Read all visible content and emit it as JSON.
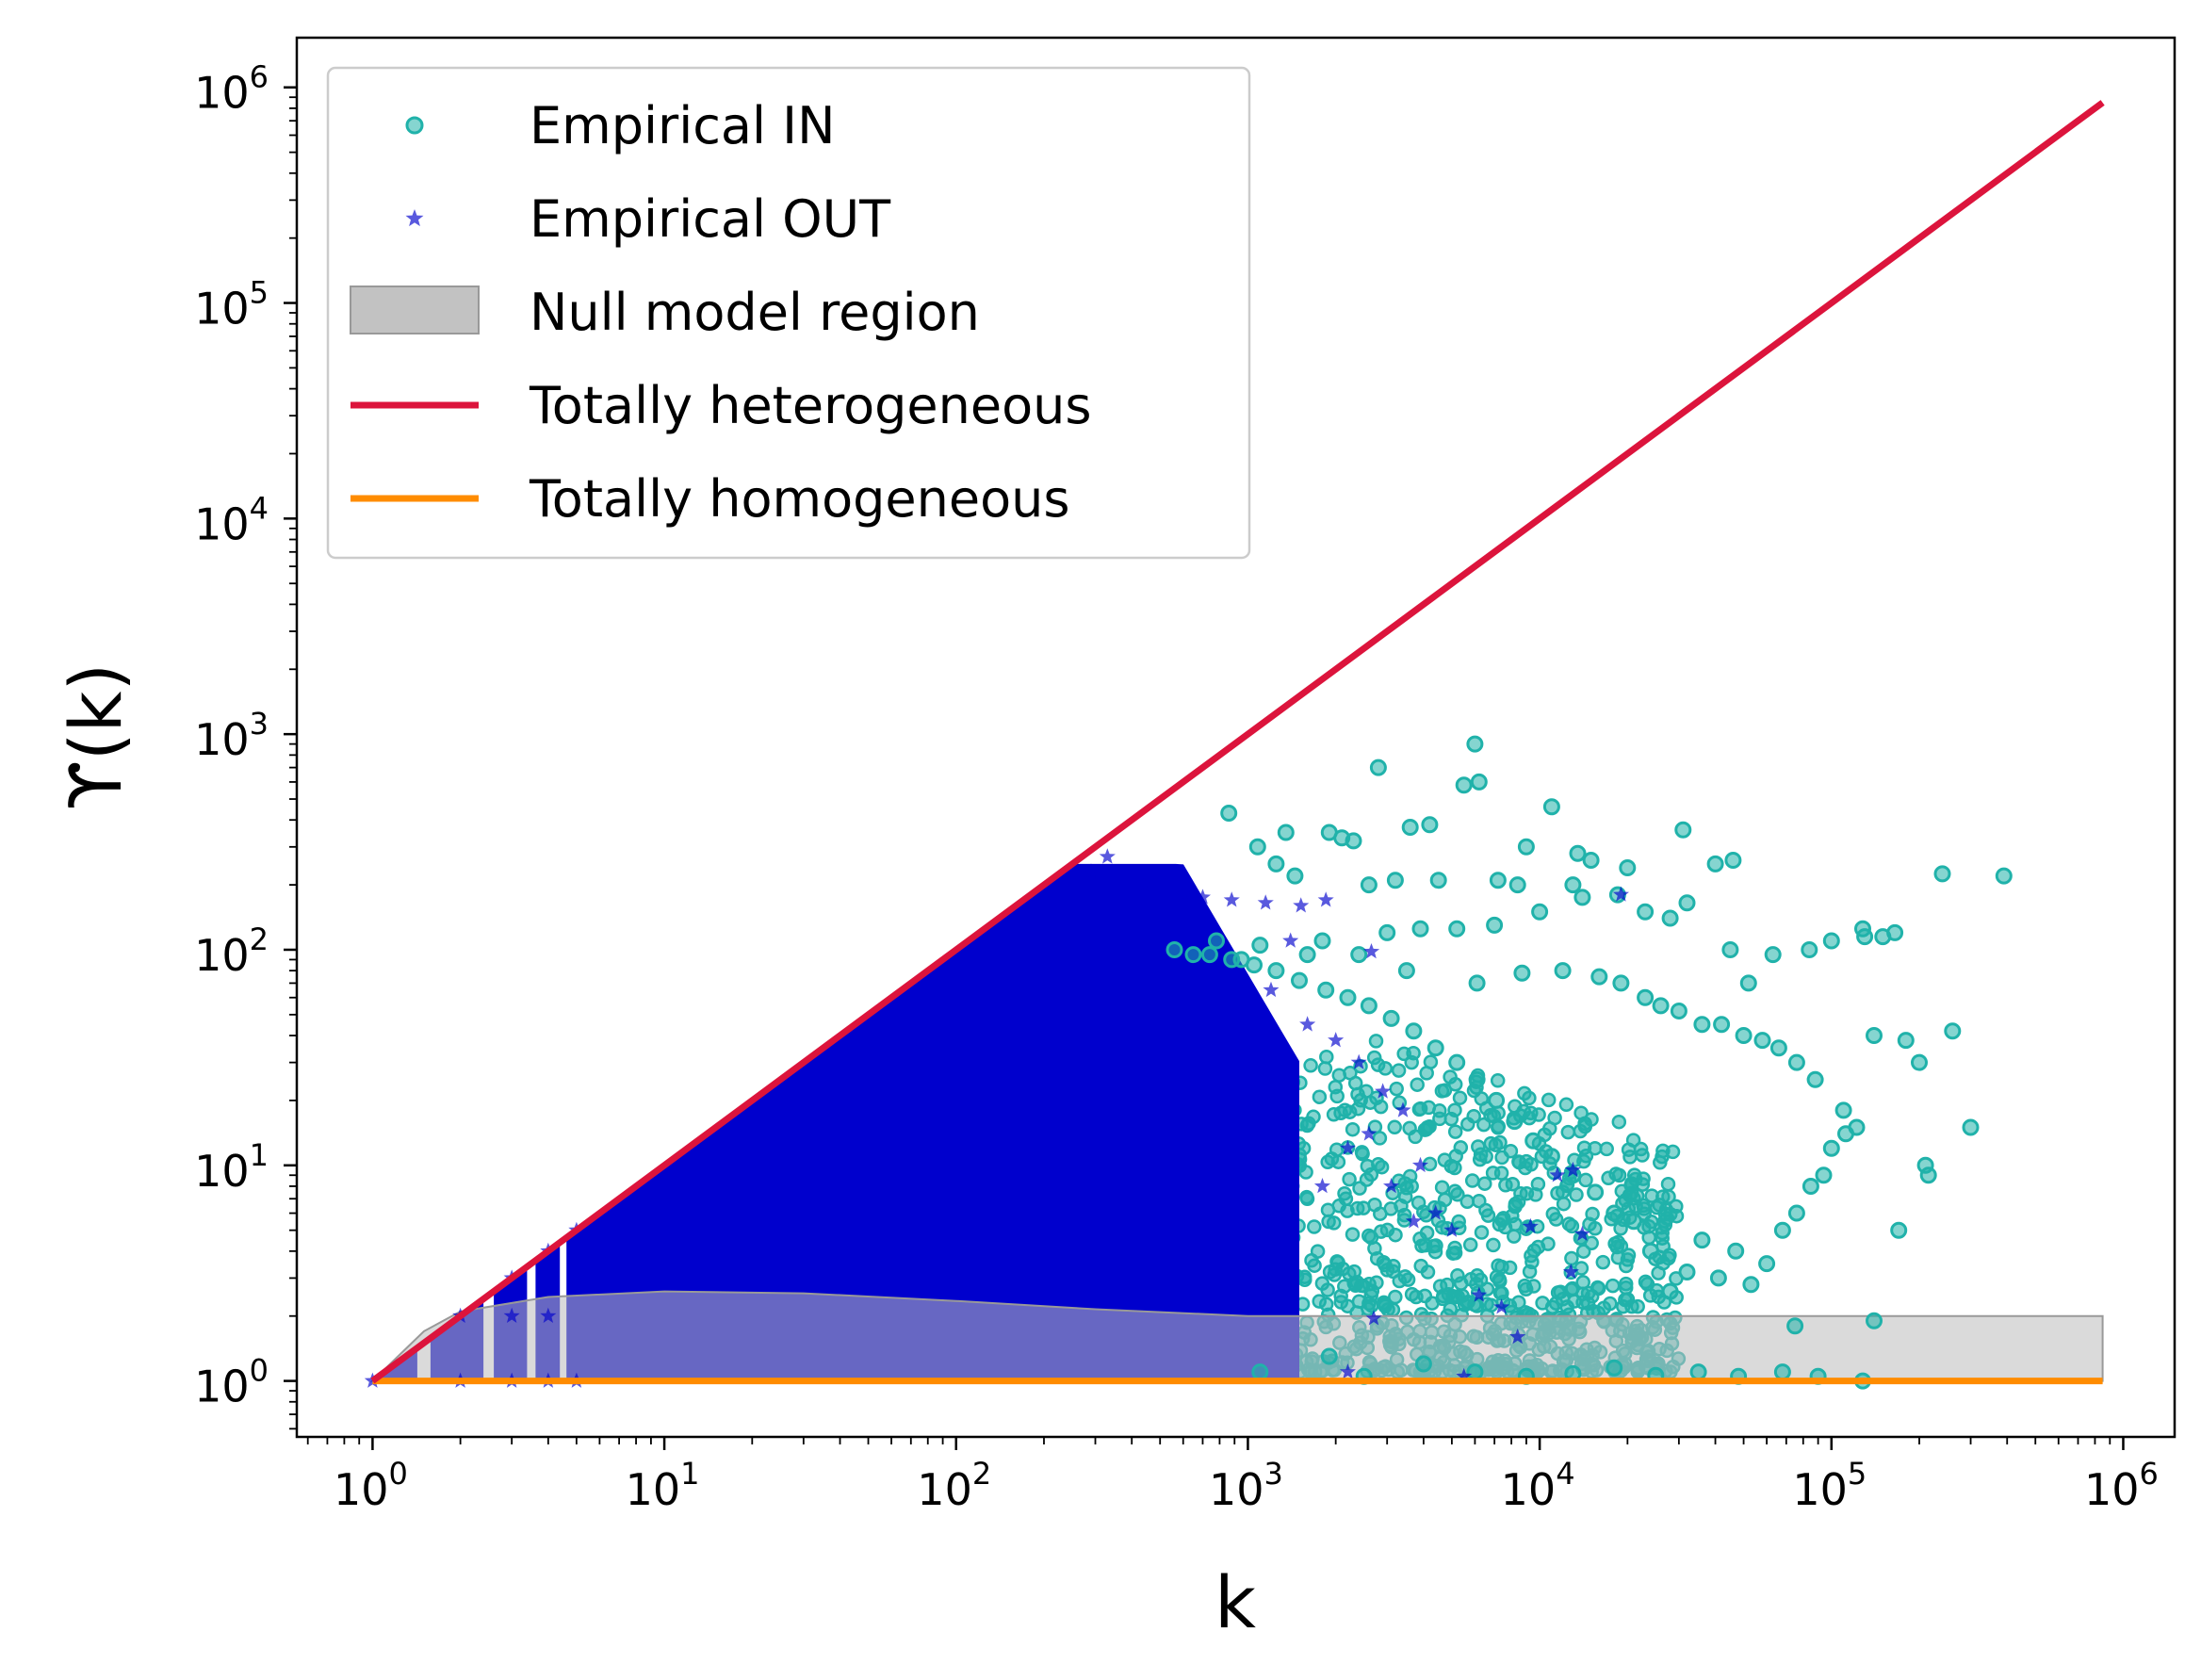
{
  "chart_data": {
    "type": "scatter",
    "title": "",
    "xlabel": "k",
    "ylabel": "ϒ(k)",
    "xscale": "log",
    "yscale": "log",
    "xlim": [
      0.55,
      1500000
    ],
    "ylim": [
      0.55,
      1700000
    ],
    "grid": false,
    "legend_position": "top-left",
    "x_ticks": [
      {
        "base": "10",
        "exp": "0",
        "value": 1
      },
      {
        "base": "10",
        "exp": "1",
        "value": 10
      },
      {
        "base": "10",
        "exp": "2",
        "value": 100
      },
      {
        "base": "10",
        "exp": "3",
        "value": 1000
      },
      {
        "base": "10",
        "exp": "4",
        "value": 10000
      },
      {
        "base": "10",
        "exp": "5",
        "value": 100000
      },
      {
        "base": "10",
        "exp": "6",
        "value": 1000000
      }
    ],
    "y_ticks": [
      {
        "base": "10",
        "exp": "0",
        "value": 1
      },
      {
        "base": "10",
        "exp": "1",
        "value": 10
      },
      {
        "base": "10",
        "exp": "2",
        "value": 100
      },
      {
        "base": "10",
        "exp": "3",
        "value": 1000
      },
      {
        "base": "10",
        "exp": "4",
        "value": 10000
      },
      {
        "base": "10",
        "exp": "5",
        "value": 100000
      },
      {
        "base": "10",
        "exp": "6",
        "value": 1000000
      }
    ],
    "series": [
      {
        "name": "Empirical IN",
        "kind": "scatter",
        "marker": "circle",
        "color": "#20b2aa",
        "points": [
          [
            6000,
            900
          ],
          [
            2800,
            700
          ],
          [
            5500,
            580
          ],
          [
            6200,
            600
          ],
          [
            11000,
            460
          ],
          [
            4200,
            380
          ],
          [
            3600,
            370
          ],
          [
            9000,
            300
          ],
          [
            13500,
            280
          ],
          [
            15000,
            260
          ],
          [
            20000,
            240
          ],
          [
            31000,
            360
          ],
          [
            40000,
            250
          ],
          [
            46000,
            260
          ],
          [
            240000,
            225
          ],
          [
            390000,
            220
          ],
          [
            1350,
            350
          ],
          [
            1900,
            350
          ],
          [
            2100,
            330
          ],
          [
            2300,
            320
          ],
          [
            860,
            430
          ],
          [
            1080,
            300
          ],
          [
            1250,
            250
          ],
          [
            1450,
            220
          ],
          [
            2600,
            200
          ],
          [
            3200,
            210
          ],
          [
            4500,
            210
          ],
          [
            7200,
            210
          ],
          [
            8400,
            200
          ],
          [
            13000,
            200
          ],
          [
            14000,
            175
          ],
          [
            18500,
            180
          ],
          [
            23000,
            150
          ],
          [
            28000,
            140
          ],
          [
            32000,
            165
          ],
          [
            45000,
            100
          ],
          [
            52000,
            70
          ],
          [
            63000,
            95
          ],
          [
            84000,
            100
          ],
          [
            100000,
            110
          ],
          [
            128000,
            125
          ],
          [
            130000,
            115
          ],
          [
            150000,
            115
          ],
          [
            165000,
            120
          ],
          [
            10000,
            150
          ],
          [
            7000,
            130
          ],
          [
            5200,
            125
          ],
          [
            3900,
            125
          ],
          [
            3000,
            120
          ],
          [
            1800,
            110
          ],
          [
            1600,
            95
          ],
          [
            1100,
            105
          ],
          [
            950,
            90
          ],
          [
            780,
            110
          ],
          [
            650,
            95
          ],
          [
            560,
            100
          ],
          [
            2400,
            95
          ],
          [
            3500,
            80
          ],
          [
            6100,
            70
          ],
          [
            8700,
            78
          ],
          [
            12000,
            80
          ],
          [
            16000,
            75
          ],
          [
            19000,
            70
          ],
          [
            23000,
            60
          ],
          [
            26000,
            55
          ],
          [
            30000,
            52
          ],
          [
            36000,
            45
          ],
          [
            42000,
            45
          ],
          [
            50000,
            40
          ],
          [
            58000,
            38
          ],
          [
            66000,
            35
          ],
          [
            76000,
            30
          ],
          [
            88000,
            25
          ],
          [
            110000,
            18
          ],
          [
            122000,
            15
          ],
          [
            140000,
            40
          ],
          [
            180000,
            38
          ],
          [
            200000,
            30
          ],
          [
            260000,
            42
          ],
          [
            300000,
            15
          ],
          [
            210000,
            10
          ],
          [
            215000,
            9
          ],
          [
            170000,
            5
          ],
          [
            100000,
            12
          ],
          [
            112000,
            14
          ],
          [
            94000,
            9
          ],
          [
            85000,
            8
          ],
          [
            76000,
            6
          ],
          [
            68000,
            5
          ],
          [
            60000,
            3.5
          ],
          [
            53000,
            2.8
          ],
          [
            47000,
            4
          ],
          [
            41000,
            3
          ],
          [
            36000,
            4.5
          ],
          [
            32000,
            3.2
          ],
          [
            28000,
            2.6
          ],
          [
            24000,
            4
          ],
          [
            21000,
            5.5
          ],
          [
            18000,
            6
          ],
          [
            15500,
            7.5
          ],
          [
            13000,
            9
          ],
          [
            11000,
            11
          ],
          [
            9500,
            13
          ],
          [
            8200,
            16
          ],
          [
            7100,
            20
          ],
          [
            6100,
            25
          ],
          [
            5200,
            30
          ],
          [
            4400,
            35
          ],
          [
            3700,
            42
          ],
          [
            3100,
            48
          ],
          [
            2600,
            55
          ],
          [
            2200,
            60
          ],
          [
            1850,
            65
          ],
          [
            1500,
            72
          ],
          [
            1250,
            80
          ],
          [
            1050,
            85
          ],
          [
            880,
            90
          ],
          [
            740,
            95
          ],
          [
            1100,
            1.1
          ],
          [
            1900,
            1.3
          ],
          [
            2500,
            1.05
          ],
          [
            4000,
            1.2
          ],
          [
            6000,
            1.1
          ],
          [
            9000,
            1.05
          ],
          [
            13000,
            1.08
          ],
          [
            18000,
            1.15
          ],
          [
            25000,
            1.06
          ],
          [
            35000,
            1.1
          ],
          [
            48000,
            1.05
          ],
          [
            68000,
            1.1
          ],
          [
            90000,
            1.05
          ],
          [
            128000,
            1.0
          ],
          [
            140000,
            1.9
          ],
          [
            75000,
            1.8
          ]
        ],
        "dense_region": {
          "x_range": [
            400,
            30000
          ],
          "y_center": 3,
          "y_top": 40,
          "y_bottom": 1.1,
          "count": 1100
        }
      },
      {
        "name": "Empirical OUT",
        "kind": "scatter",
        "marker": "star",
        "color": "#0000cd",
        "dense_region": {
          "x_range": [
            1,
            1500
          ],
          "y_bottom": 1,
          "y_top_follows": "y = k",
          "y_top_cap": 250
        },
        "points": [
          [
            1,
            1
          ],
          [
            2,
            1
          ],
          [
            2,
            2
          ],
          [
            3,
            1
          ],
          [
            3,
            2
          ],
          [
            3,
            3
          ],
          [
            4,
            1
          ],
          [
            4,
            2
          ],
          [
            4,
            4
          ],
          [
            5,
            1
          ],
          [
            5,
            3
          ],
          [
            5,
            5
          ],
          [
            330,
            270
          ],
          [
            290,
            230
          ],
          [
            440,
            200
          ],
          [
            600,
            180
          ],
          [
            700,
            175
          ],
          [
            880,
            170
          ],
          [
            1150,
            165
          ],
          [
            1520,
            160
          ],
          [
            1850,
            170
          ],
          [
            2650,
            98
          ],
          [
            1400,
            110
          ],
          [
            1200,
            65
          ],
          [
            1600,
            45
          ],
          [
            2000,
            38
          ],
          [
            2400,
            30
          ],
          [
            2900,
            22
          ],
          [
            3400,
            18
          ],
          [
            3900,
            10
          ],
          [
            4400,
            6
          ],
          [
            5000,
            5
          ],
          [
            1800,
            8
          ],
          [
            2200,
            12
          ],
          [
            2600,
            14
          ],
          [
            3100,
            8
          ],
          [
            3700,
            5.5
          ],
          [
            6200,
            2.5
          ],
          [
            7400,
            2.2
          ],
          [
            8400,
            1.6
          ],
          [
            9300,
            5.2
          ],
          [
            11500,
            9
          ],
          [
            13000,
            9.5
          ],
          [
            14000,
            4.8
          ],
          [
            12800,
            3.2
          ],
          [
            19000,
            180
          ],
          [
            2700,
            1.95
          ],
          [
            2200,
            1.1
          ],
          [
            5500,
            1.05
          ]
        ]
      },
      {
        "name": "Null model region",
        "kind": "band",
        "color": "#bbbbbb",
        "lower": [
          [
            1,
            1
          ],
          [
            850000,
            1
          ]
        ],
        "upper": [
          [
            1,
            1.0
          ],
          [
            1.5,
            1.7
          ],
          [
            2,
            2.1
          ],
          [
            4,
            2.45
          ],
          [
            10,
            2.6
          ],
          [
            30,
            2.55
          ],
          [
            100,
            2.35
          ],
          [
            300,
            2.15
          ],
          [
            1000,
            2.0
          ],
          [
            3000,
            2.0
          ],
          [
            850000,
            2.0
          ]
        ]
      },
      {
        "name": "Totally heterogeneous",
        "kind": "line",
        "color": "#dc143c",
        "points": [
          [
            1,
            1
          ],
          [
            850000,
            850000
          ]
        ]
      },
      {
        "name": "Totally homogeneous",
        "kind": "line",
        "color": "#ff8c00",
        "points": [
          [
            1,
            1
          ],
          [
            850000,
            1
          ]
        ]
      }
    ]
  }
}
